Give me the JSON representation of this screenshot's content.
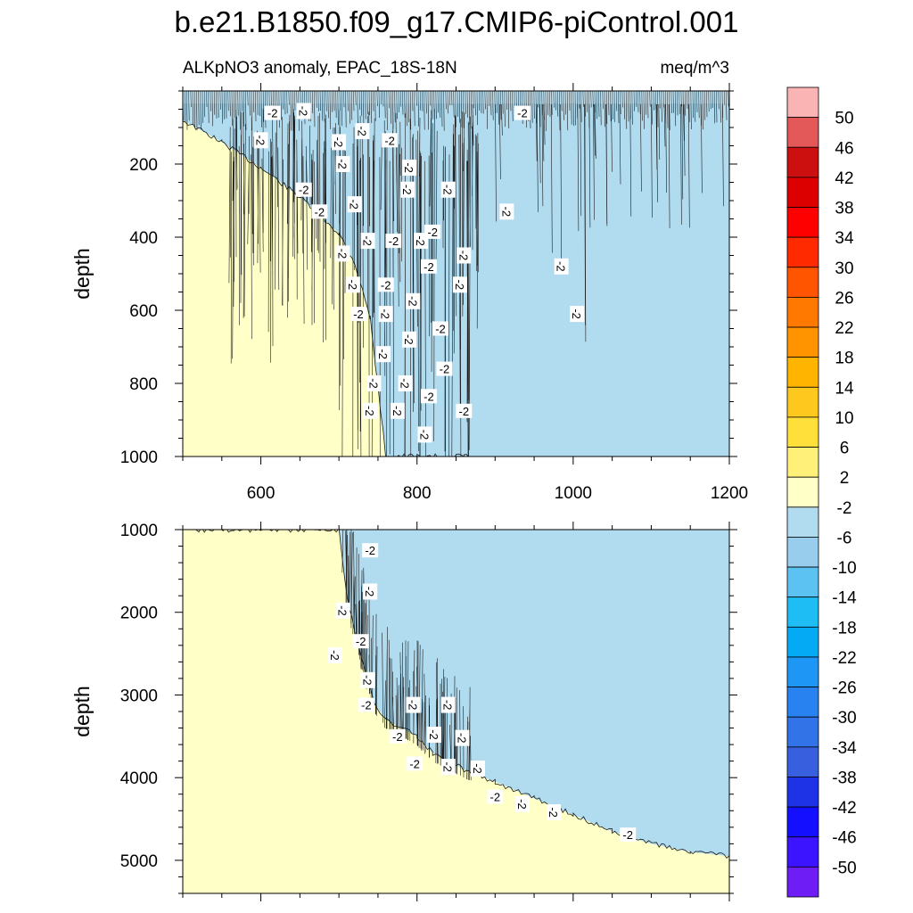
{
  "chart_data": [
    {
      "type": "heatmap",
      "title": "b.e21.B1850.f09_g17.CMIP6-piControl.001",
      "subtitle_left": "ALKpNO3 anomaly, EPAC_18S-18N",
      "subtitle_right": "meq/m^3",
      "xlabel": "",
      "ylabel": "depth",
      "xlim": [
        500,
        1200
      ],
      "ylim": [
        1000,
        0
      ],
      "x_ticks": [
        600,
        800,
        1000,
        1200
      ],
      "x_tick_labels": [
        "600",
        "800",
        "1000",
        "1200"
      ],
      "y_ticks": [
        200,
        400,
        600,
        800,
        1000
      ],
      "y_tick_labels": [
        "200",
        "400",
        "600",
        "800",
        "1000"
      ],
      "boundary_x": [
        500,
        550,
        600,
        650,
        700,
        720,
        740,
        760,
        800,
        850,
        860,
        870
      ],
      "boundary_depth": [
        80,
        140,
        210,
        290,
        390,
        470,
        620,
        1000,
        1000,
        1000,
        1000,
        1000
      ],
      "region_left_value": "2",
      "region_right_value": "-2",
      "contour_labels": [
        {
          "x": 615,
          "depth": 60,
          "text": "-2"
        },
        {
          "x": 655,
          "depth": 55,
          "text": "-2"
        },
        {
          "x": 730,
          "depth": 110,
          "text": "-2"
        },
        {
          "x": 935,
          "depth": 60,
          "text": "-2"
        },
        {
          "x": 600,
          "depth": 135,
          "text": "-2"
        },
        {
          "x": 700,
          "depth": 140,
          "text": "-2"
        },
        {
          "x": 765,
          "depth": 135,
          "text": "-2"
        },
        {
          "x": 705,
          "depth": 200,
          "text": "-2"
        },
        {
          "x": 790,
          "depth": 210,
          "text": "-2"
        },
        {
          "x": 655,
          "depth": 270,
          "text": "-2"
        },
        {
          "x": 788,
          "depth": 270,
          "text": "-2"
        },
        {
          "x": 840,
          "depth": 270,
          "text": "-2"
        },
        {
          "x": 675,
          "depth": 330,
          "text": "-2"
        },
        {
          "x": 720,
          "depth": 310,
          "text": "-2"
        },
        {
          "x": 915,
          "depth": 330,
          "text": "-2"
        },
        {
          "x": 820,
          "depth": 385,
          "text": "-2"
        },
        {
          "x": 705,
          "depth": 445,
          "text": "-2"
        },
        {
          "x": 737,
          "depth": 410,
          "text": "-2"
        },
        {
          "x": 770,
          "depth": 410,
          "text": "-2"
        },
        {
          "x": 805,
          "depth": 410,
          "text": "-2"
        },
        {
          "x": 860,
          "depth": 450,
          "text": "-2"
        },
        {
          "x": 815,
          "depth": 480,
          "text": "-2"
        },
        {
          "x": 985,
          "depth": 480,
          "text": "-2"
        },
        {
          "x": 718,
          "depth": 530,
          "text": "-2"
        },
        {
          "x": 760,
          "depth": 530,
          "text": "-2"
        },
        {
          "x": 855,
          "depth": 530,
          "text": "-2"
        },
        {
          "x": 795,
          "depth": 575,
          "text": "-2"
        },
        {
          "x": 725,
          "depth": 610,
          "text": "-2"
        },
        {
          "x": 760,
          "depth": 610,
          "text": "-2"
        },
        {
          "x": 1005,
          "depth": 610,
          "text": "-2"
        },
        {
          "x": 830,
          "depth": 650,
          "text": "-2"
        },
        {
          "x": 790,
          "depth": 680,
          "text": "-2"
        },
        {
          "x": 757,
          "depth": 720,
          "text": "-2"
        },
        {
          "x": 835,
          "depth": 760,
          "text": "-2"
        },
        {
          "x": 745,
          "depth": 800,
          "text": "-2"
        },
        {
          "x": 785,
          "depth": 800,
          "text": "-2"
        },
        {
          "x": 815,
          "depth": 835,
          "text": "-2"
        },
        {
          "x": 740,
          "depth": 875,
          "text": "-2"
        },
        {
          "x": 775,
          "depth": 875,
          "text": "-2"
        },
        {
          "x": 860,
          "depth": 875,
          "text": "-2"
        },
        {
          "x": 810,
          "depth": 940,
          "text": "-2"
        }
      ]
    },
    {
      "type": "heatmap",
      "title": "",
      "xlabel": "",
      "ylabel": "depth",
      "xlim": [
        500,
        1200
      ],
      "ylim": [
        5400,
        1000
      ],
      "x_ticks": [
        600,
        800,
        1000,
        1200
      ],
      "x_tick_labels": [],
      "y_ticks": [
        1000,
        2000,
        3000,
        4000,
        5000
      ],
      "y_tick_labels": [
        "1000",
        "2000",
        "3000",
        "4000",
        "5000"
      ],
      "boundary_x": [
        500,
        700,
        710,
        730,
        745,
        760,
        800,
        820,
        860,
        900,
        950,
        1000,
        1050,
        1100,
        1150,
        1200
      ],
      "boundary_depth": [
        1000,
        1000,
        1800,
        2600,
        3100,
        3300,
        3500,
        3700,
        3900,
        4050,
        4250,
        4450,
        4650,
        4800,
        4900,
        4950
      ],
      "region_left_value": "2",
      "region_right_value": "-2",
      "contour_labels": [
        {
          "x": 740,
          "depth": 1250,
          "text": "-2"
        },
        {
          "x": 740,
          "depth": 1750,
          "text": "-2"
        },
        {
          "x": 705,
          "depth": 1980,
          "text": "-2"
        },
        {
          "x": 728,
          "depth": 2350,
          "text": "-2"
        },
        {
          "x": 695,
          "depth": 2520,
          "text": "-2"
        },
        {
          "x": 737,
          "depth": 2820,
          "text": "-2"
        },
        {
          "x": 735,
          "depth": 3120,
          "text": "-2"
        },
        {
          "x": 795,
          "depth": 3120,
          "text": "-2"
        },
        {
          "x": 840,
          "depth": 3120,
          "text": "-2"
        },
        {
          "x": 775,
          "depth": 3500,
          "text": "-2"
        },
        {
          "x": 822,
          "depth": 3480,
          "text": "-2"
        },
        {
          "x": 858,
          "depth": 3520,
          "text": "-2"
        },
        {
          "x": 797,
          "depth": 3830,
          "text": "-2"
        },
        {
          "x": 840,
          "depth": 3870,
          "text": "-2"
        },
        {
          "x": 878,
          "depth": 3890,
          "text": "-2"
        },
        {
          "x": 900,
          "depth": 4230,
          "text": "-2"
        },
        {
          "x": 935,
          "depth": 4320,
          "text": "-2"
        },
        {
          "x": 975,
          "depth": 4420,
          "text": "-2"
        },
        {
          "x": 1070,
          "depth": 4690,
          "text": "-2"
        }
      ]
    }
  ],
  "colorbar": {
    "levels": [
      "50",
      "46",
      "42",
      "38",
      "34",
      "30",
      "26",
      "22",
      "18",
      "14",
      "10",
      "6",
      "2",
      "-2",
      "-6",
      "-10",
      "-14",
      "-18",
      "-22",
      "-26",
      "-30",
      "-34",
      "-38",
      "-42",
      "-46",
      "-50"
    ],
    "colors": [
      "#fbb4b4",
      "#e35858",
      "#cc1010",
      "#dc0000",
      "#ff0000",
      "#ff2a00",
      "#ff5500",
      "#ff7800",
      "#ff9400",
      "#ffb400",
      "#ffc81e",
      "#ffe03a",
      "#fff07a",
      "#ffffc8",
      "#b1dcf0",
      "#98cded",
      "#5cc2f2",
      "#1ebef5",
      "#05aaf5",
      "#1e96f5",
      "#2882f0",
      "#3373e8",
      "#3860de",
      "#1e32e6",
      "#140fff",
      "#3c14ff",
      "#6e1ef5"
    ]
  },
  "colors": {
    "positive_region": "#ffffc8",
    "negative_region": "#b1dcf0",
    "contour_line": "#1a1a1a"
  }
}
